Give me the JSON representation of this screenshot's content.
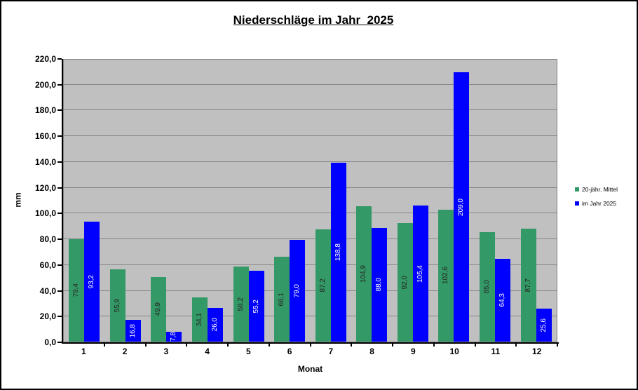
{
  "title": "Niederschläge im Jahr  2025",
  "axes": {
    "y_label": "mm",
    "x_label": "Monat",
    "y_ticks": [
      "0,0",
      "20,0",
      "40,0",
      "60,0",
      "80,0",
      "100,0",
      "120,0",
      "140,0",
      "160,0",
      "180,0",
      "200,0",
      "220,0"
    ],
    "y_tick_step": 20,
    "y_max": 220
  },
  "chart_data": {
    "type": "bar",
    "title": "Niederschläge im Jahr  2025",
    "xlabel": "Monat",
    "ylabel": "mm",
    "ylim": [
      0,
      220
    ],
    "y_tick_step": 20,
    "grid": true,
    "plot_bg_color": "#c0c0c0",
    "gridline_color": "#868686",
    "legend_position": "right",
    "categories": [
      "1",
      "2",
      "3",
      "4",
      "5",
      "6",
      "7",
      "8",
      "9",
      "10",
      "11",
      "12"
    ],
    "series": [
      {
        "name": "20-jähr. Mittel",
        "color": "#339966",
        "label_color": "#262626",
        "values": [
          79.4,
          55.9,
          49.9,
          34.1,
          58.2,
          66.1,
          87.2,
          104.9,
          92.0,
          102.6,
          85.0,
          87.7
        ],
        "labels": [
          "79,4",
          "55,9",
          "49,9",
          "34,1",
          "58,2",
          "66,1",
          "87,2",
          "104,9",
          "92,0",
          "102,6",
          "85,0",
          "87,7"
        ]
      },
      {
        "name": "im Jahr 2025",
        "color": "#0000ff",
        "label_color": "#ffffff",
        "values": [
          93.2,
          16.8,
          7.8,
          26.0,
          55.2,
          79.0,
          138.8,
          88.0,
          105.4,
          209.0,
          64.3,
          25.6
        ],
        "labels": [
          "93,2",
          "16,8",
          "7,8",
          "26,0",
          "55,2",
          "79,0",
          "138,8",
          "88,0",
          "105,4",
          "209,0",
          "64,3",
          "25,6"
        ]
      }
    ]
  }
}
